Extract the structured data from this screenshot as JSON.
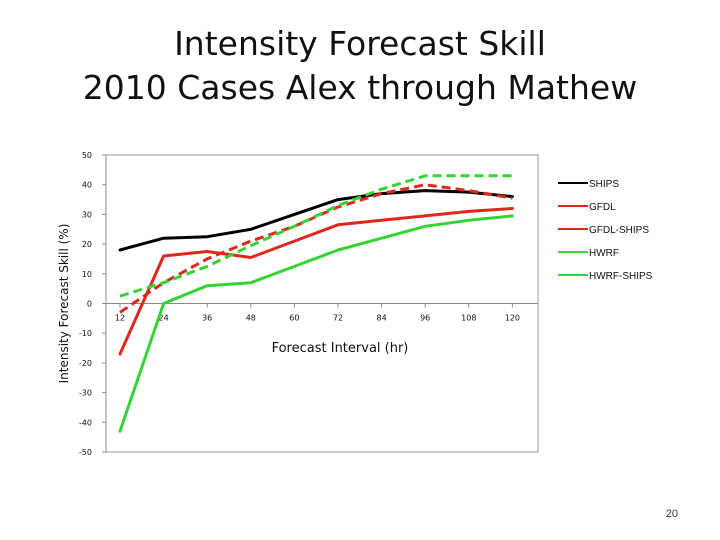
{
  "slide": {
    "title_line1": "Intensity Forecast Skill",
    "title_line2": "2010 Cases Alex through Mathew",
    "page_number": "20"
  },
  "chart_data": {
    "type": "line",
    "ylabel": "Intensity Forecast Skill (%)",
    "xlabel": "Forecast Interval (hr)",
    "ylim": [
      -50,
      50
    ],
    "y_ticks": [
      50,
      40,
      30,
      20,
      10,
      0,
      -10,
      -20,
      -30,
      -40,
      -50
    ],
    "grid": false,
    "legend_position": "right",
    "categories": [
      "12",
      "24",
      "36",
      "48",
      "60",
      "72",
      "84",
      "96",
      "108",
      "120"
    ],
    "series": [
      {
        "name": "SHIPS",
        "color": "#000000",
        "dash": "solid",
        "values": [
          18,
          22,
          22.5,
          25,
          30,
          35,
          37,
          38,
          37.5,
          36
        ]
      },
      {
        "name": "GFDL",
        "color": "#e0271c",
        "dash": "solid",
        "values": [
          -17,
          16,
          17.5,
          15.5,
          21,
          26.5,
          28,
          29.5,
          31,
          32
        ]
      },
      {
        "name": "GFDL-SHIPS",
        "color": "#e0271c",
        "dash": "dashed",
        "values": [
          -3,
          7,
          15,
          21,
          26,
          32.5,
          37,
          40,
          38,
          35.5
        ]
      },
      {
        "name": "HWRF",
        "color": "#34d434",
        "dash": "solid",
        "values": [
          -43,
          0,
          6,
          7,
          12.5,
          18,
          22,
          26,
          28,
          29.5
        ]
      },
      {
        "name": "HWRF-SHIPS",
        "color": "#34d434",
        "dash": "dashed",
        "values": [
          2.5,
          7,
          12.5,
          19.5,
          26,
          33,
          38.5,
          43,
          43,
          43
        ]
      }
    ]
  }
}
